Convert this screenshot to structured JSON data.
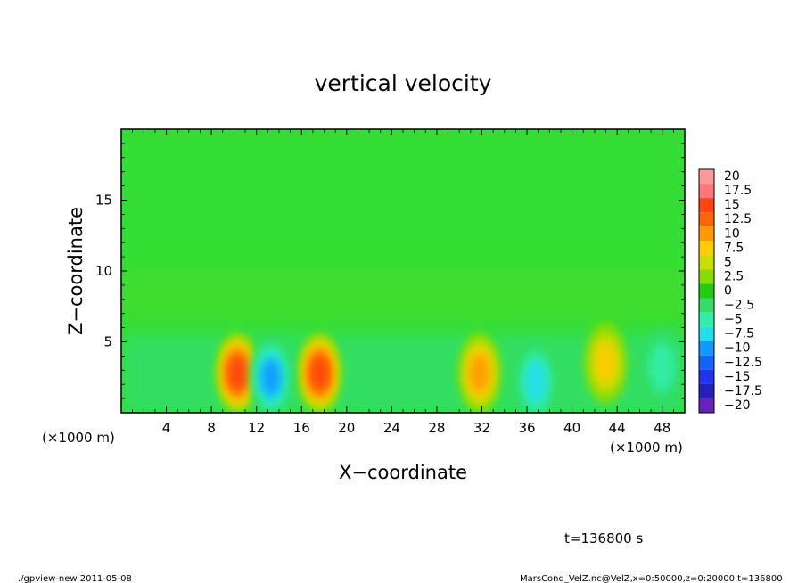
{
  "chart_data": {
    "type": "heatmap",
    "title": "vertical velocity",
    "xlabel": "X−coordinate",
    "ylabel": "Z−coordinate",
    "x_unit_left": "(×1000 m)",
    "x_unit_right": "(×1000 m)",
    "xlim": [
      0,
      50
    ],
    "ylim": [
      0,
      20
    ],
    "x_ticks": [
      "4",
      "8",
      "12",
      "16",
      "20",
      "24",
      "28",
      "32",
      "36",
      "40",
      "44",
      "48"
    ],
    "x_tick_values": [
      4,
      8,
      12,
      16,
      20,
      24,
      28,
      32,
      36,
      40,
      44,
      48
    ],
    "y_ticks": [
      "5",
      "10",
      "15"
    ],
    "y_tick_values": [
      5,
      10,
      15
    ],
    "colorbar": {
      "labels": [
        "20",
        "17.5",
        "15",
        "12.5",
        "10",
        "7.5",
        "5",
        "2.5",
        "0",
        "−2.5",
        "−5",
        "−7.5",
        "−10",
        "−12.5",
        "−15",
        "−17.5",
        "−20"
      ],
      "levels": [
        20,
        17.5,
        15,
        12.5,
        10,
        7.5,
        5,
        2.5,
        0,
        -2.5,
        -5,
        -7.5,
        -10,
        -12.5,
        -15,
        -17.5,
        -20
      ],
      "colors": [
        "#ff9999",
        "#ff7777",
        "#ff4411",
        "#ff6600",
        "#ff9900",
        "#ffcc00",
        "#ccdd00",
        "#88dd00",
        "#22cc11",
        "#33dd66",
        "#33eeaa",
        "#22ddee",
        "#1199ff",
        "#1166ff",
        "#2233ee",
        "#2222bb",
        "#6622bb"
      ]
    },
    "features": [
      {
        "x": 10.3,
        "z": 2.8,
        "w": 15
      },
      {
        "x": 17.6,
        "z": 2.8,
        "w": 16
      },
      {
        "x": 31.8,
        "z": 2.8,
        "w": 10
      },
      {
        "x": 43.0,
        "z": 3.5,
        "w": 9
      },
      {
        "x": 13.3,
        "z": 2.5,
        "w": -11
      },
      {
        "x": 36.8,
        "z": 2.2,
        "w": -9
      },
      {
        "x": 48.0,
        "z": 3.2,
        "w": -5
      }
    ],
    "time_label": "t=136800 s",
    "footer_left": "./gpview-new   2011-05-08",
    "footer_right": "MarsCond_VelZ.nc@VelZ,x=0:50000,z=0:20000,t=136800"
  }
}
